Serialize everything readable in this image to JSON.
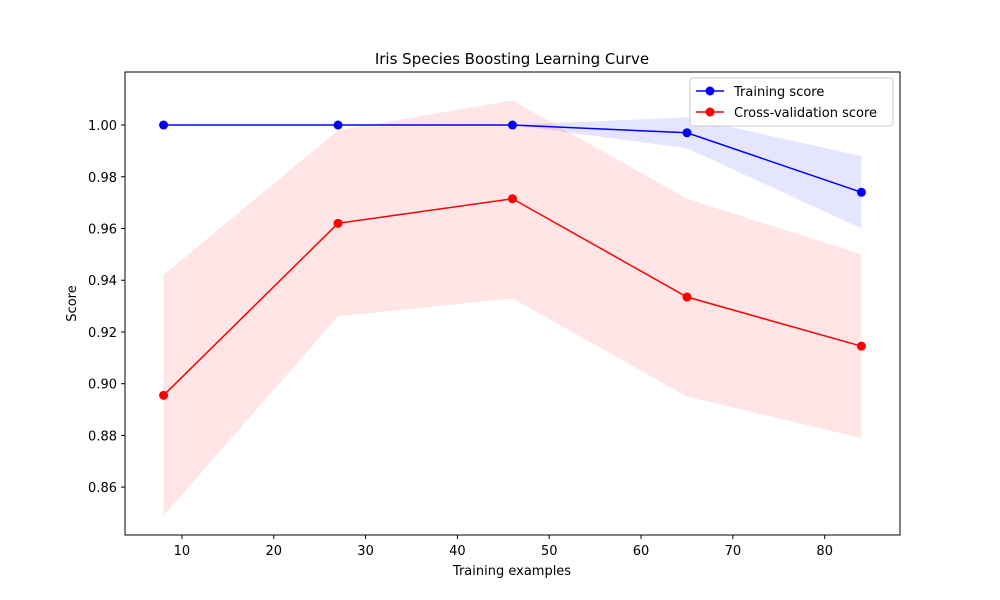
{
  "chart_data": {
    "type": "line",
    "title": "Iris Species Boosting Learning Curve",
    "xlabel": "Training examples",
    "ylabel": "Score",
    "xlim": [
      3.8,
      88.2
    ],
    "ylim": [
      0.8415,
      1.0205
    ],
    "xticks": [
      10,
      20,
      30,
      40,
      50,
      60,
      70,
      80
    ],
    "yticks": [
      0.86,
      0.88,
      0.9,
      0.92,
      0.94,
      0.96,
      0.98,
      1.0
    ],
    "x": [
      8,
      27,
      46,
      65,
      84
    ],
    "grid": false,
    "legend_position": "top-right",
    "series": [
      {
        "name": "Training score",
        "color": "#0000ff",
        "fill_color": "#0000ff",
        "fill_opacity": 0.1,
        "values": [
          1.0,
          1.0,
          1.0,
          0.997,
          0.974
        ],
        "std_lower": [
          1.0,
          1.0,
          1.0,
          0.991,
          0.96
        ],
        "std_upper": [
          1.0,
          1.0,
          1.0,
          1.003,
          0.988
        ]
      },
      {
        "name": "Cross-validation score",
        "color": "#ff0000",
        "fill_color": "#ff0000",
        "fill_opacity": 0.1,
        "values": [
          0.8955,
          0.962,
          0.9715,
          0.9335,
          0.9145
        ],
        "std_lower": [
          0.849,
          0.926,
          0.933,
          0.895,
          0.879
        ],
        "std_upper": [
          0.942,
          0.998,
          1.0095,
          0.9715,
          0.95
        ]
      }
    ]
  }
}
